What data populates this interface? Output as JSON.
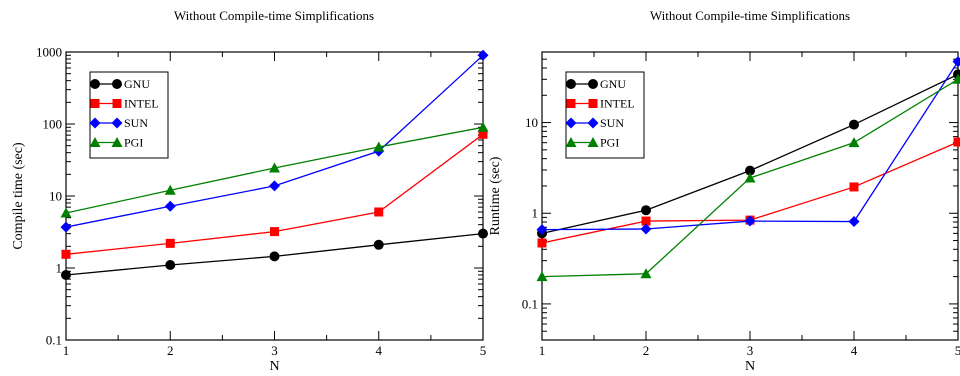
{
  "chart_data": [
    {
      "type": "line",
      "title": "Without Compile-time Simplifications",
      "xlabel": "N",
      "ylabel": "Compile time (sec)",
      "yscale": "log",
      "xlim": [
        1,
        5
      ],
      "ylim": [
        0.1,
        1000
      ],
      "x": [
        1,
        2,
        3,
        4,
        5
      ],
      "x_ticks": [
        "1",
        "2",
        "3",
        "4",
        "5"
      ],
      "y_ticks": [
        {
          "value": 0.1,
          "label": "0.1"
        },
        {
          "value": 1,
          "label": "1"
        },
        {
          "value": 10,
          "label": "10"
        },
        {
          "value": 100,
          "label": "100"
        },
        {
          "value": 1000,
          "label": "1000"
        }
      ],
      "legend_position": "top-left",
      "series": [
        {
          "name": "GNU",
          "color": "#000000",
          "marker": "circle",
          "values": [
            0.8,
            1.1,
            1.45,
            2.1,
            3.0
          ]
        },
        {
          "name": "INTEL",
          "color": "#ff0000",
          "marker": "square",
          "values": [
            1.55,
            2.2,
            3.2,
            6.0,
            72
          ]
        },
        {
          "name": "SUN",
          "color": "#0000ff",
          "marker": "diamond",
          "values": [
            3.7,
            7.2,
            13.8,
            42,
            900
          ]
        },
        {
          "name": "PGI",
          "color": "#008000",
          "marker": "triangle",
          "values": [
            5.8,
            12,
            24.5,
            48,
            90
          ]
        }
      ]
    },
    {
      "type": "line",
      "title": "Without Compile-time Simplifications",
      "xlabel": "N",
      "ylabel": "Runtime (sec)",
      "yscale": "log",
      "xlim": [
        1,
        5
      ],
      "ylim": [
        0.04,
        60
      ],
      "x": [
        1,
        2,
        3,
        4,
        5
      ],
      "x_ticks": [
        "1",
        "2",
        "3",
        "4",
        "5"
      ],
      "y_ticks": [
        {
          "value": 0.1,
          "label": "0.1"
        },
        {
          "value": 1,
          "label": "1"
        },
        {
          "value": 10,
          "label": "10"
        }
      ],
      "legend_position": "top-left",
      "series": [
        {
          "name": "GNU",
          "color": "#000000",
          "marker": "circle",
          "values": [
            0.6,
            1.08,
            2.95,
            9.5,
            34
          ]
        },
        {
          "name": "INTEL",
          "color": "#ff0000",
          "marker": "square",
          "values": [
            0.47,
            0.82,
            0.84,
            1.95,
            6.1
          ]
        },
        {
          "name": "SUN",
          "color": "#0000ff",
          "marker": "diamond",
          "values": [
            0.66,
            0.67,
            0.82,
            0.81,
            47
          ]
        },
        {
          "name": "PGI",
          "color": "#008000",
          "marker": "triangle",
          "values": [
            0.2,
            0.215,
            2.45,
            6.0,
            30
          ]
        }
      ]
    }
  ]
}
